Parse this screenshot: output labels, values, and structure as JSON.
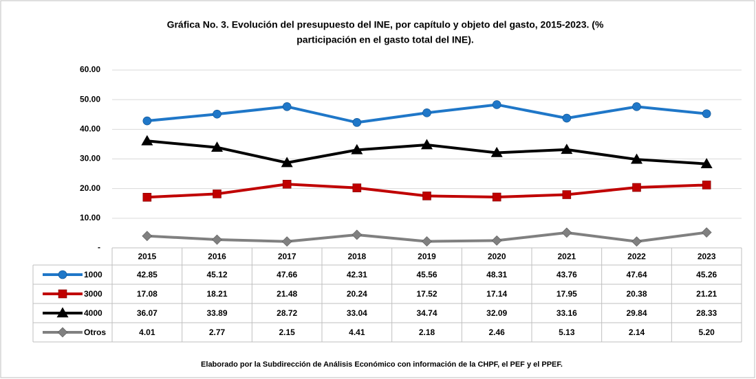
{
  "chart_data": {
    "type": "line",
    "title": [
      "Gráfica No. 3. Evolución del presupuesto del INE, por capítulo y objeto del gasto, 2015-2023. (%",
      "participación en el gasto total del INE)."
    ],
    "footnote": "Elaborado por la Subdirección de Análisis Económico con información de la CHPF, el PEF y el PPEF.",
    "categories": [
      "2015",
      "2016",
      "2017",
      "2018",
      "2019",
      "2020",
      "2021",
      "2022",
      "2023"
    ],
    "series": [
      {
        "name": "1000",
        "color": "#1f77c8",
        "marker": "circle",
        "values": [
          42.85,
          45.12,
          47.66,
          42.31,
          45.56,
          48.31,
          43.76,
          47.64,
          45.26
        ],
        "value_labels": [
          "42.85",
          "45.12",
          "47.66",
          "42.31",
          "45.56",
          "48.31",
          "43.76",
          "47.64",
          "45.26"
        ]
      },
      {
        "name": "3000",
        "color": "#c00000",
        "marker": "square",
        "values": [
          17.08,
          18.21,
          21.48,
          20.24,
          17.52,
          17.14,
          17.95,
          20.38,
          21.21
        ],
        "value_labels": [
          "17.08",
          "18.21",
          "21.48",
          "20.24",
          "17.52",
          "17.14",
          "17.95",
          "20.38",
          "21.21"
        ]
      },
      {
        "name": "4000",
        "color": "#000000",
        "marker": "triangle",
        "values": [
          36.07,
          33.89,
          28.72,
          33.04,
          34.74,
          32.09,
          33.16,
          29.84,
          28.33
        ],
        "value_labels": [
          "36.07",
          "33.89",
          "28.72",
          "33.04",
          "34.74",
          "32.09",
          "33.16",
          "29.84",
          "28.33"
        ]
      },
      {
        "name": "Otros",
        "color": "#808080",
        "marker": "diamond",
        "values": [
          4.01,
          2.77,
          2.15,
          4.41,
          2.18,
          2.46,
          5.13,
          2.14,
          5.2
        ],
        "value_labels": [
          "4.01",
          "2.77",
          "2.15",
          "4.41",
          "2.18",
          "2.46",
          "5.13",
          "2.14",
          "5.20"
        ]
      }
    ],
    "ylim": [
      0,
      60
    ],
    "yticks": [
      {
        "value": 0,
        "label": "-"
      },
      {
        "value": 10,
        "label": "10.00"
      },
      {
        "value": 20,
        "label": "20.00"
      },
      {
        "value": 30,
        "label": "30.00"
      },
      {
        "value": 40,
        "label": "40.00"
      },
      {
        "value": 50,
        "label": "50.00"
      },
      {
        "value": 60,
        "label": "60.00"
      }
    ],
    "grid": true
  }
}
